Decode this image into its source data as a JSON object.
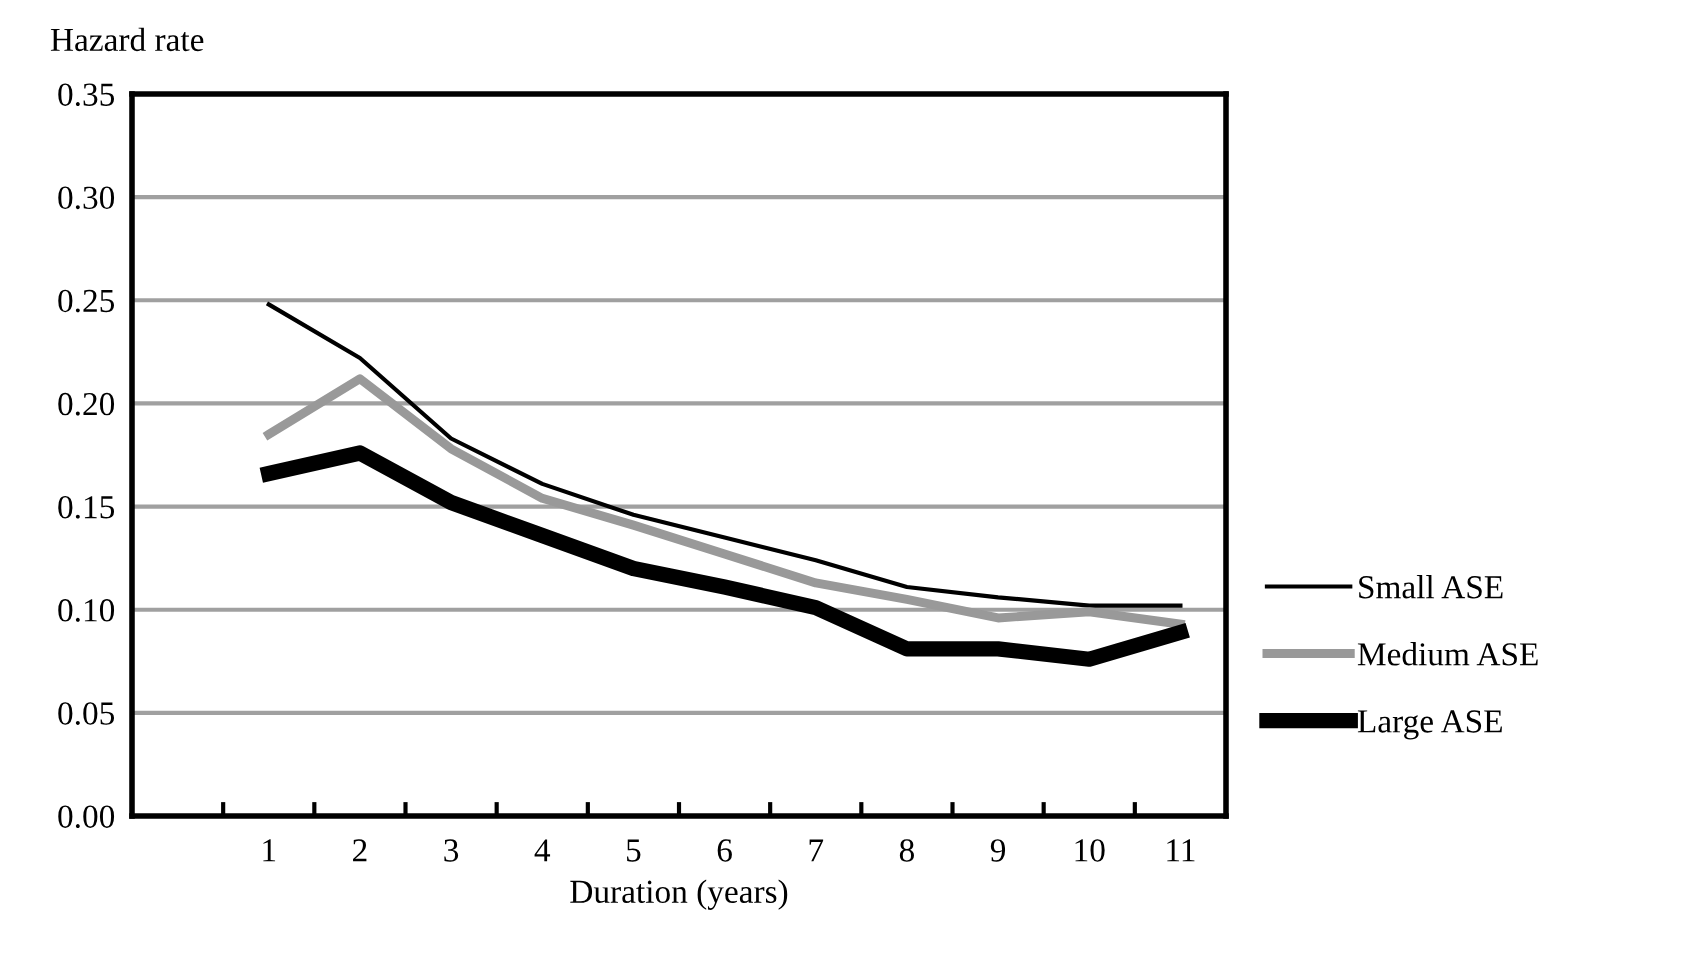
{
  "chart_data": {
    "type": "line",
    "ylabel": "Hazard rate",
    "xlabel": "Duration (years)",
    "categories": [
      null,
      "1",
      "2",
      "3",
      "4",
      "5",
      "6",
      "7",
      "8",
      "9",
      "10",
      "11"
    ],
    "series": [
      {
        "name": "Small ASE",
        "color": "#000000",
        "values": [
          null,
          0.248,
          0.222,
          0.183,
          0.161,
          0.146,
          0.135,
          0.124,
          0.111,
          0.106,
          0.102,
          0.102
        ]
      },
      {
        "name": "Medium ASE",
        "color": "#999999",
        "values": [
          null,
          0.185,
          0.212,
          0.178,
          0.154,
          0.141,
          0.127,
          0.113,
          0.105,
          0.096,
          0.099,
          0.093
        ]
      },
      {
        "name": "Large ASE",
        "color": "#000000",
        "values": [
          null,
          0.166,
          0.176,
          0.152,
          0.136,
          0.12,
          0.111,
          0.101,
          0.081,
          0.081,
          0.076,
          0.089
        ]
      }
    ],
    "ylim": [
      0,
      0.35
    ],
    "yticks": [
      {
        "value": 0,
        "label": "0.00"
      },
      {
        "value": 0.05,
        "label": "0.05"
      },
      {
        "value": 0.1,
        "label": "0.10"
      },
      {
        "value": 0.15,
        "label": "0.15"
      },
      {
        "value": 0.2,
        "label": "0.20"
      },
      {
        "value": 0.25,
        "label": "0.25"
      },
      {
        "value": 0.3,
        "label": "0.30"
      },
      {
        "value": 0.35,
        "label": "0.35"
      }
    ],
    "grid": "y",
    "legend": "right",
    "marker": "none",
    "line_style": "solid"
  }
}
